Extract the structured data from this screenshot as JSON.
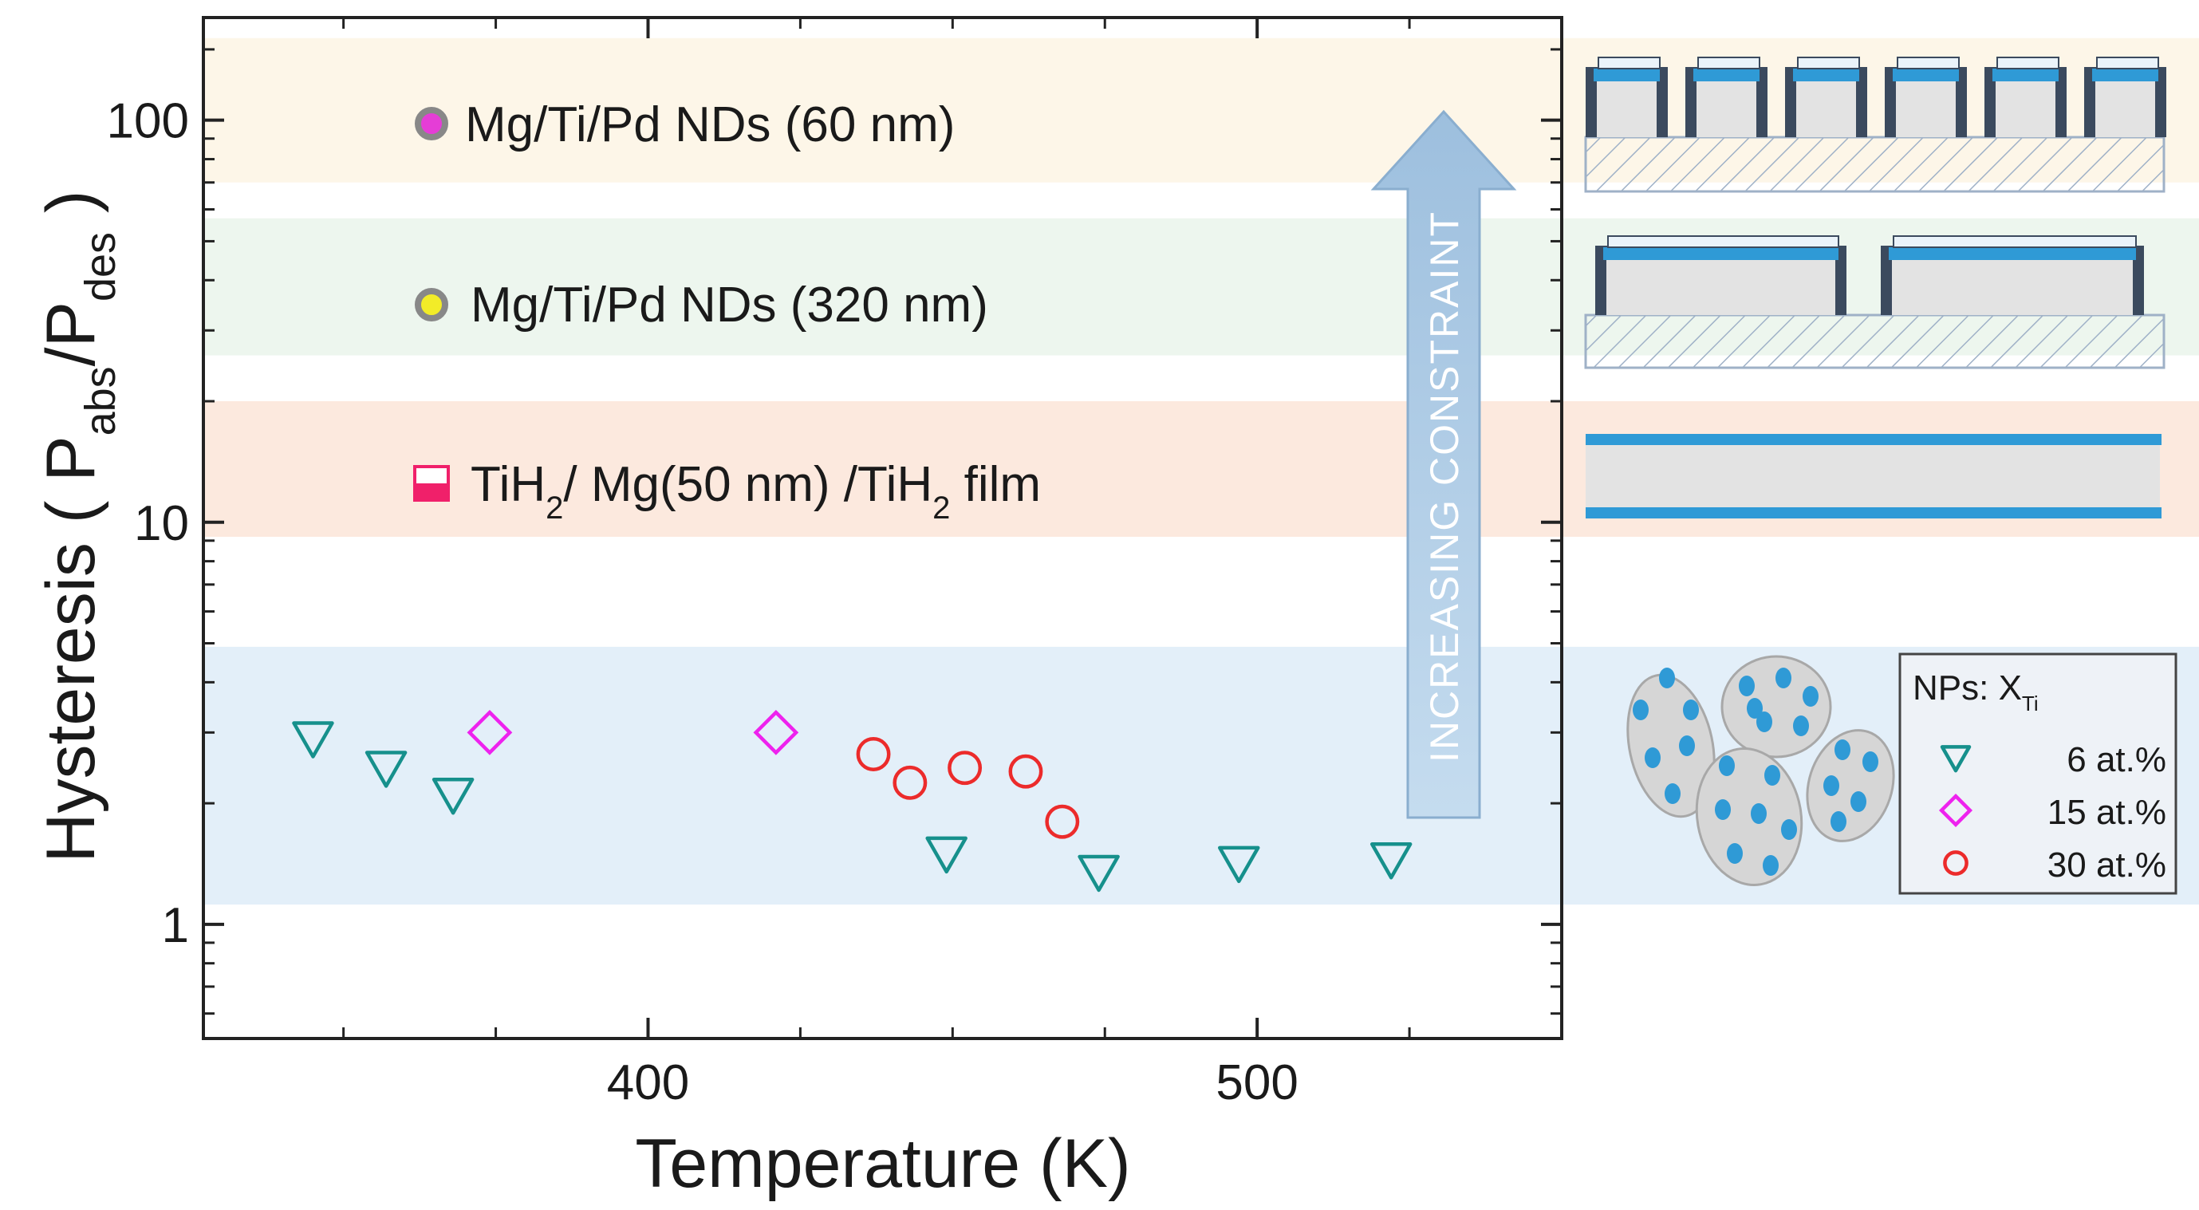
{
  "chart_data": {
    "type": "scatter",
    "title": "",
    "xlabel": "Temperature (K)",
    "ylabel": {
      "main": "Hysteresis ( P",
      "sub1": "abs",
      "mid": "/P",
      "sub2": "des",
      "end": " )"
    },
    "xlim": [
      327,
      550
    ],
    "ylim": [
      0.52,
      180
    ],
    "yscale": "log",
    "x_ticks": [
      400,
      500
    ],
    "x_tick_labels": [
      "400",
      "500"
    ],
    "y_ticks": [
      1,
      10,
      100
    ],
    "y_tick_labels": [
      "1",
      "10",
      "100"
    ],
    "grid": false,
    "bands": [
      {
        "name": "nd60",
        "from": 70,
        "to": 160,
        "color": "#fdf6e8"
      },
      {
        "name": "nd320",
        "from": 26,
        "to": 57,
        "color": "#edf6ee"
      },
      {
        "name": "film",
        "from": 9.2,
        "to": 20,
        "color": "#fce9de"
      },
      {
        "name": "nps",
        "from": 1.12,
        "to": 4.9,
        "color": "#e3eff9"
      }
    ],
    "band_labels": {
      "nd60": "Mg/Ti/Pd NDs (60 nm)",
      "nd320": "Mg/Ti/Pd NDs (320 nm)",
      "film": {
        "p1": "TiH",
        "s1": "2",
        "p2": "/ Mg(50 nm) /TiH",
        "s2": "2",
        "p3": " film"
      }
    },
    "band_marker_colors": {
      "nd60": "#e53dd6",
      "nd320": "#f2ec28",
      "film": "#f0206a"
    },
    "arrow_label": "INCREASING CONSTRAINT",
    "series": [
      {
        "name": "6 at.%",
        "marker": "triangle-down",
        "color": "#16908c",
        "points": [
          [
            345,
            2.9
          ],
          [
            357,
            2.45
          ],
          [
            368,
            2.1
          ],
          [
            449,
            1.5
          ],
          [
            474,
            1.35
          ],
          [
            497,
            1.42
          ],
          [
            522,
            1.45
          ]
        ]
      },
      {
        "name": "15 at.%",
        "marker": "diamond",
        "color": "#ee22ee",
        "points": [
          [
            374,
            3.0
          ],
          [
            421,
            3.0
          ]
        ]
      },
      {
        "name": "30 at.%",
        "marker": "circle",
        "color": "#ec2b2b",
        "points": [
          [
            437,
            2.65
          ],
          [
            443,
            2.25
          ],
          [
            452,
            2.45
          ],
          [
            462,
            2.4
          ],
          [
            468,
            1.8
          ]
        ]
      }
    ],
    "legend": {
      "title_main": "NPs: X",
      "title_sub": "Ti",
      "position": "inside-right-bottom",
      "entries": [
        "6 at.%",
        "15 at.%",
        "30 at.%"
      ]
    }
  },
  "colors": {
    "axis": "#222222",
    "dark_wall": "#3b4a5e",
    "blue_layer": "#2f9ad6",
    "core_gray": "#e3e3e3",
    "hatch_line": "#9fb1c7",
    "arrow_fill": "#a9c9e4",
    "particle_fill": "#d6d6d6",
    "particle_dot": "#2f9ad6"
  }
}
